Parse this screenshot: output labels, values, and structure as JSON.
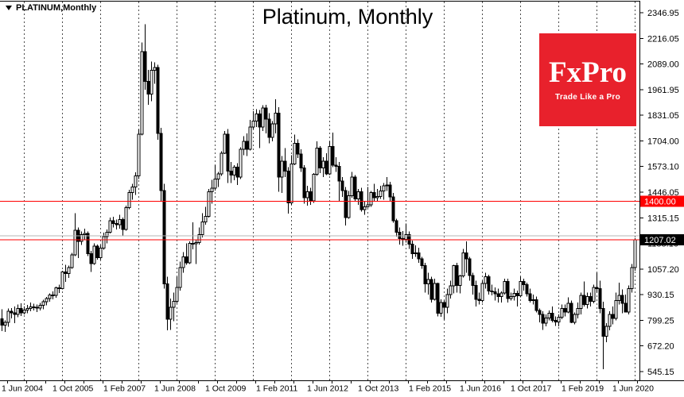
{
  "window": {
    "symbol_label": "PLATINUM,Monthly",
    "title": "Platinum, Monthly"
  },
  "logo": {
    "brand": "FxPro",
    "tagline": "Trade Like a Pro",
    "bg_color": "#E8212C",
    "text_color": "#FFFFFF"
  },
  "colors": {
    "background": "#FFFFFF",
    "candle_bull_fill": "#FFFFFF",
    "candle_bear_fill": "#000000",
    "candle_outline": "#000000",
    "grid": "#4D4D4D",
    "axis": "#000000",
    "level_line": "#FF0000",
    "gray_line": "#B4B4B4",
    "bid_label_bg": "#000000",
    "level_label_bg": "#FF0000",
    "label_text": "#FFFFFF"
  },
  "y_axis": {
    "labels": [
      "2346.95",
      "2216.05",
      "2089.00",
      "1961.95",
      "1831.05",
      "1704.00",
      "1573.10",
      "1446.05",
      "1315.15",
      "1188.10",
      "1057.20",
      "930.15",
      "799.25",
      "672.20",
      "545.15"
    ],
    "top_value": 2346.95,
    "bottom_value": 545.15
  },
  "x_axis": {
    "labels": [
      "1 Jun 2004",
      "1 Oct 2005",
      "1 Feb 2007",
      "1 Jun 2008",
      "1 Oct 2009",
      "1 Feb 2011",
      "1 Jun 2012",
      "1 Oct 2013",
      "1 Feb 2015",
      "1 Jun 2016",
      "1 Oct 2017",
      "1 Feb 2019",
      "1 Jun 2020"
    ],
    "months_between_labels": 16
  },
  "price_lines": [
    {
      "price": 1400.0,
      "label": "1400.00",
      "line_color": "#FF0000",
      "label_bg": "#FF0000"
    },
    {
      "price": 1207.02,
      "label": "1207.02",
      "line_color": "#FF0000",
      "label_bg": "#000000"
    }
  ],
  "gray_line_price": 1227,
  "current_price": "1207.02",
  "chart_data": {
    "type": "candlestick",
    "symbol": "PLATINUM",
    "timeframe": "Monthly",
    "start_month": "2004-06",
    "end_month": "2021-01",
    "ylim": [
      545.15,
      2346.95
    ],
    "grid": "vertical-dashed-yearly",
    "note": "monthly OHLC, values in USD per oz",
    "candles": [
      [
        810,
        858,
        748,
        778
      ],
      [
        778,
        802,
        745,
        792
      ],
      [
        792,
        862,
        770,
        848
      ],
      [
        848,
        865,
        812,
        840
      ],
      [
        840,
        872,
        788,
        832
      ],
      [
        832,
        882,
        818,
        862
      ],
      [
        862,
        888,
        824,
        840
      ],
      [
        840,
        872,
        832,
        855
      ],
      [
        855,
        880,
        838,
        862
      ],
      [
        862,
        892,
        848,
        870
      ],
      [
        870,
        885,
        852,
        868
      ],
      [
        868,
        882,
        845,
        865
      ],
      [
        865,
        890,
        852,
        878
      ],
      [
        878,
        905,
        858,
        895
      ],
      [
        895,
        920,
        878,
        912
      ],
      [
        912,
        938,
        895,
        930
      ],
      [
        930,
        948,
        908,
        928
      ],
      [
        928,
        972,
        915,
        965
      ],
      [
        965,
        982,
        940,
        962
      ],
      [
        962,
        1052,
        958,
        1045
      ],
      [
        1045,
        1082,
        995,
        1038
      ],
      [
        1038,
        1078,
        1015,
        1068
      ],
      [
        1068,
        1142,
        1062,
        1132
      ],
      [
        1132,
        1340,
        1125,
        1255
      ],
      [
        1255,
        1268,
        1115,
        1198
      ],
      [
        1198,
        1248,
        1180,
        1232
      ],
      [
        1232,
        1262,
        1208,
        1238
      ],
      [
        1238,
        1248,
        1125,
        1138
      ],
      [
        1138,
        1152,
        1045,
        1088
      ],
      [
        1088,
        1188,
        1082,
        1175
      ],
      [
        1175,
        1182,
        1108,
        1118
      ],
      [
        1118,
        1178,
        1108,
        1165
      ],
      [
        1165,
        1242,
        1158,
        1222
      ],
      [
        1222,
        1258,
        1188,
        1245
      ],
      [
        1245,
        1318,
        1238,
        1302
      ],
      [
        1302,
        1322,
        1268,
        1288
      ],
      [
        1288,
        1308,
        1258,
        1282
      ],
      [
        1282,
        1332,
        1262,
        1308
      ],
      [
        1308,
        1318,
        1228,
        1258
      ],
      [
        1258,
        1378,
        1252,
        1368
      ],
      [
        1368,
        1458,
        1360,
        1445
      ],
      [
        1445,
        1488,
        1408,
        1472
      ],
      [
        1472,
        1545,
        1432,
        1528
      ],
      [
        1528,
        1760,
        1512,
        1738
      ],
      [
        1738,
        2198,
        1732,
        2152
      ],
      [
        2152,
        2290,
        1960,
        2002
      ],
      [
        2002,
        2060,
        1885,
        1938
      ],
      [
        1938,
        2102,
        1902,
        2058
      ],
      [
        2058,
        2098,
        1990,
        2072
      ],
      [
        2072,
        2085,
        1710,
        1742
      ],
      [
        1742,
        1768,
        1398,
        1455
      ],
      [
        1455,
        1488,
        962,
        985
      ],
      [
        985,
        1022,
        752,
        808
      ],
      [
        808,
        912,
        755,
        868
      ],
      [
        868,
        942,
        798,
        898
      ],
      [
        898,
        1022,
        888,
        968
      ],
      [
        968,
        1098,
        952,
        1068
      ],
      [
        1068,
        1145,
        1042,
        1122
      ],
      [
        1122,
        1188,
        1082,
        1092
      ],
      [
        1092,
        1198,
        1085,
        1188
      ],
      [
        1188,
        1295,
        1160,
        1186
      ],
      [
        1186,
        1205,
        1086,
        1192
      ],
      [
        1192,
        1268,
        1182,
        1232
      ],
      [
        1232,
        1340,
        1218,
        1296
      ],
      [
        1296,
        1372,
        1282,
        1325
      ],
      [
        1325,
        1462,
        1318,
        1448
      ],
      [
        1448,
        1508,
        1388,
        1465
      ],
      [
        1465,
        1582,
        1455,
        1512
      ],
      [
        1512,
        1548,
        1472,
        1538
      ],
      [
        1538,
        1652,
        1528,
        1642
      ],
      [
        1642,
        1752,
        1638,
        1738
      ],
      [
        1738,
        1762,
        1492,
        1552
      ],
      [
        1552,
        1598,
        1492,
        1532
      ],
      [
        1532,
        1582,
        1505,
        1572
      ],
      [
        1572,
        1592,
        1482,
        1522
      ],
      [
        1522,
        1672,
        1512,
        1662
      ],
      [
        1662,
        1728,
        1632,
        1702
      ],
      [
        1702,
        1742,
        1628,
        1662
      ],
      [
        1662,
        1808,
        1655,
        1772
      ],
      [
        1772,
        1852,
        1762,
        1802
      ],
      [
        1802,
        1862,
        1772,
        1838
      ],
      [
        1838,
        1858,
        1668,
        1772
      ],
      [
        1772,
        1882,
        1752,
        1868
      ],
      [
        1868,
        1885,
        1742,
        1812
      ],
      [
        1812,
        1842,
        1692,
        1722
      ],
      [
        1722,
        1802,
        1702,
        1788
      ],
      [
        1788,
        1912,
        1742,
        1842
      ],
      [
        1842,
        1872,
        1448,
        1522
      ],
      [
        1522,
        1628,
        1442,
        1602
      ],
      [
        1602,
        1668,
        1522,
        1552
      ],
      [
        1552,
        1572,
        1338,
        1392
      ],
      [
        1392,
        1632,
        1382,
        1588
      ],
      [
        1588,
        1735,
        1582,
        1692
      ],
      [
        1692,
        1712,
        1618,
        1638
      ],
      [
        1638,
        1662,
        1548,
        1568
      ],
      [
        1568,
        1582,
        1388,
        1418
      ],
      [
        1418,
        1478,
        1379,
        1448
      ],
      [
        1448,
        1468,
        1382,
        1402
      ],
      [
        1402,
        1542,
        1392,
        1535
      ],
      [
        1535,
        1702,
        1528,
        1668
      ],
      [
        1668,
        1678,
        1542,
        1568
      ],
      [
        1568,
        1622,
        1522,
        1602
      ],
      [
        1602,
        1642,
        1532,
        1538
      ],
      [
        1538,
        1702,
        1532,
        1675
      ],
      [
        1675,
        1745,
        1572,
        1582
      ],
      [
        1582,
        1622,
        1548,
        1575
      ],
      [
        1575,
        1598,
        1402,
        1502
      ],
      [
        1502,
        1522,
        1422,
        1455
      ],
      [
        1455,
        1472,
        1278,
        1318
      ],
      [
        1318,
        1452,
        1312,
        1428
      ],
      [
        1428,
        1548,
        1418,
        1522
      ],
      [
        1522,
        1532,
        1402,
        1412
      ],
      [
        1412,
        1462,
        1382,
        1448
      ],
      [
        1448,
        1468,
        1348,
        1358
      ],
      [
        1358,
        1398,
        1332,
        1372
      ],
      [
        1372,
        1472,
        1368,
        1382
      ],
      [
        1382,
        1452,
        1372,
        1445
      ],
      [
        1445,
        1488,
        1402,
        1418
      ],
      [
        1418,
        1462,
        1398,
        1425
      ],
      [
        1425,
        1478,
        1412,
        1452
      ],
      [
        1452,
        1492,
        1408,
        1478
      ],
      [
        1478,
        1522,
        1452,
        1482
      ],
      [
        1482,
        1498,
        1402,
        1422
      ],
      [
        1422,
        1442,
        1292,
        1302
      ],
      [
        1302,
        1312,
        1222,
        1245
      ],
      [
        1245,
        1268,
        1182,
        1212
      ],
      [
        1212,
        1250,
        1177,
        1208
      ],
      [
        1208,
        1288,
        1192,
        1232
      ],
      [
        1232,
        1248,
        1162,
        1185
      ],
      [
        1185,
        1202,
        1112,
        1138
      ],
      [
        1138,
        1178,
        1122,
        1142
      ],
      [
        1142,
        1168,
        1092,
        1112
      ],
      [
        1112,
        1122,
        1062,
        1078
      ],
      [
        1078,
        1092,
        942,
        985
      ],
      [
        985,
        1042,
        932,
        1008
      ],
      [
        1008,
        1022,
        892,
        908
      ],
      [
        908,
        1012,
        902,
        988
      ],
      [
        988,
        992,
        822,
        838
      ],
      [
        838,
        908,
        820,
        892
      ],
      [
        892,
        902,
        806,
        868
      ],
      [
        868,
        962,
        838,
        932
      ],
      [
        932,
        1002,
        912,
        975
      ],
      [
        975,
        1082,
        938,
        1078
      ],
      [
        1078,
        1092,
        942,
        978
      ],
      [
        978,
        1032,
        938,
        1025
      ],
      [
        1025,
        1162,
        1018,
        1142
      ],
      [
        1142,
        1199,
        1042,
        1112
      ],
      [
        1112,
        1122,
        1002,
        1028
      ],
      [
        1028,
        1042,
        932,
        978
      ],
      [
        978,
        1002,
        872,
        908
      ],
      [
        908,
        942,
        882,
        902
      ],
      [
        902,
        1002,
        892,
        988
      ],
      [
        988,
        1042,
        962,
        1022
      ],
      [
        1022,
        1032,
        932,
        950
      ],
      [
        950,
        982,
        928,
        945
      ],
      [
        945,
        968,
        902,
        935
      ],
      [
        935,
        962,
        892,
        922
      ],
      [
        922,
        948,
        892,
        940
      ],
      [
        940,
        1012,
        932,
        998
      ],
      [
        998,
        1012,
        892,
        912
      ],
      [
        912,
        942,
        902,
        922
      ],
      [
        922,
        962,
        902,
        938
      ],
      [
        938,
        952,
        872,
        925
      ],
      [
        925,
        1022,
        918,
        998
      ],
      [
        998,
        1012,
        952,
        982
      ],
      [
        982,
        992,
        922,
        935
      ],
      [
        935,
        962,
        892,
        902
      ],
      [
        902,
        932,
        882,
        905
      ],
      [
        905,
        922,
        842,
        852
      ],
      [
        852,
        862,
        792,
        832
      ],
      [
        832,
        848,
        755,
        788
      ],
      [
        788,
        832,
        772,
        815
      ],
      [
        815,
        852,
        802,
        838
      ],
      [
        838,
        872,
        792,
        802
      ],
      [
        802,
        822,
        775,
        795
      ],
      [
        795,
        832,
        772,
        818
      ],
      [
        818,
        882,
        808,
        862
      ],
      [
        862,
        882,
        822,
        845
      ],
      [
        845,
        918,
        838,
        888
      ],
      [
        888,
        902,
        788,
        792
      ],
      [
        792,
        842,
        782,
        832
      ],
      [
        832,
        892,
        812,
        862
      ],
      [
        862,
        942,
        832,
        928
      ],
      [
        928,
        998,
        872,
        882
      ],
      [
        882,
        942,
        862,
        922
      ],
      [
        922,
        942,
        872,
        898
      ],
      [
        898,
        982,
        888,
        968
      ],
      [
        968,
        1041,
        942,
        962
      ],
      [
        962,
        1002,
        838,
        862
      ],
      [
        862,
        895,
        558,
        722
      ],
      [
        722,
        788,
        692,
        772
      ],
      [
        772,
        848,
        752,
        832
      ],
      [
        832,
        872,
        782,
        812
      ],
      [
        812,
        942,
        802,
        902
      ],
      [
        902,
        992,
        882,
        928
      ],
      [
        928,
        958,
        838,
        888
      ],
      [
        888,
        932,
        842,
        845
      ],
      [
        845,
        978,
        832,
        962
      ],
      [
        962,
        1085,
        942,
        1068
      ],
      [
        1068,
        1215,
        1052,
        1207.02
      ]
    ]
  }
}
